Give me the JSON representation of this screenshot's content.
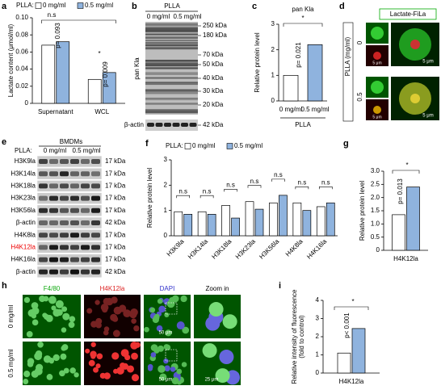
{
  "panel_labels": [
    "a",
    "b",
    "c",
    "d",
    "e",
    "f",
    "g",
    "h",
    "i"
  ],
  "chart_data": [
    {
      "type": "bar",
      "y_label": [
        "Lactate content (μmol/ml)"
      ],
      "legend_title": "PLLA:",
      "categories": [
        "Supernatant",
        "WCL"
      ],
      "series": [
        {
          "name": "0 mg/ml",
          "color": "#ffffff",
          "values": [
            0.068,
            0.028
          ]
        },
        {
          "name": "0.5 mg/ml",
          "color": "#8fb3de",
          "values": [
            0.072,
            0.036
          ]
        }
      ],
      "ylim": [
        0,
        0.1
      ],
      "yticks": [
        0,
        0.02,
        0.04,
        0.06,
        0.08,
        {
          "value": 0.1,
          "label": "0.10"
        }
      ],
      "annotations": [
        "n.s",
        "p= 0.093",
        "*",
        "p= 0.009"
      ]
    },
    {
      "type": "bar",
      "title": "pan Kla",
      "y_label": [
        "Relative protein level"
      ],
      "x_label": "PLLA",
      "categories": [
        "0 mg/ml",
        "0.5 mg/ml"
      ],
      "series": [
        {
          "colors": [
            "#ffffff",
            "#8fb3de"
          ],
          "values": [
            1.0,
            2.2
          ]
        }
      ],
      "ylim": [
        0,
        3
      ],
      "yticks": [
        0,
        1,
        2,
        3
      ],
      "annotations": [
        "*",
        "p= 0.021"
      ]
    },
    {
      "type": "bar",
      "y_label": [
        "Relative protein level"
      ],
      "legend_title": "PLLA:",
      "categories": [
        "H3K9la",
        "H3K14la",
        "H3K18la",
        "H3K23la",
        "H3K56la",
        "H4K8la",
        "H4K16la"
      ],
      "series": [
        {
          "name": "0 mg/ml",
          "color": "#ffffff",
          "values": [
            0.95,
            0.95,
            1.2,
            1.35,
            1.3,
            1.3,
            1.15
          ]
        },
        {
          "name": "0.5 mg/ml",
          "color": "#8fb3de",
          "values": [
            0.85,
            0.85,
            0.7,
            1.05,
            1.6,
            1.0,
            1.3
          ]
        }
      ],
      "ylim": [
        0,
        3
      ],
      "yticks": [
        0,
        1,
        2,
        3
      ],
      "annotations": [
        "n.s",
        "n.s",
        "n.s",
        "n.s",
        "n.s",
        "n.s",
        "n.s"
      ]
    },
    {
      "type": "bar",
      "y_label": [
        "Relative protein level"
      ],
      "categories": [
        "H4K12la"
      ],
      "series": [
        {
          "color": "#ffffff",
          "values": [
            1.35
          ]
        },
        {
          "color": "#8fb3de",
          "values": [
            2.4
          ]
        }
      ],
      "ylim": [
        0,
        3
      ],
      "yticks": [
        0,
        0.5,
        {
          "value": 1,
          "label": "1.0"
        },
        1.5,
        {
          "value": 2,
          "label": "2.0"
        },
        2.5,
        {
          "value": 3,
          "label": "3.0"
        }
      ],
      "annotations": [
        "*",
        "p= 0.013"
      ]
    },
    {
      "type": "bar",
      "y_label": [
        "Relative intensity of fluorescence",
        "(fold to control)"
      ],
      "categories": [
        "H4K12la"
      ],
      "series": [
        {
          "color": "#ffffff",
          "values": [
            1.1
          ]
        },
        {
          "color": "#8fb3de",
          "values": [
            2.45
          ]
        }
      ],
      "ylim": [
        0,
        4
      ],
      "yticks": [
        0,
        1,
        2,
        3,
        4
      ],
      "annotations": [
        "*",
        "p< 0.001"
      ]
    }
  ],
  "images": {
    "b": {
      "title": "PLLA",
      "lanes": [
        "0 mg/ml",
        "0.5 mg/ml"
      ],
      "rows": [
        "pan Kla",
        "β-actin"
      ],
      "markers": [
        "250 kDa",
        "180 kDa",
        "70 kDa",
        "50 kDa",
        "40 kDa",
        "30 kDa",
        "20 kDa",
        "42 kDa"
      ]
    },
    "d": {
      "title": "Lactate-FiLa",
      "axis": "PLLA (mg/ml)",
      "rows": [
        "0",
        "0.5"
      ],
      "scales": [
        "5 μm",
        "5 μm",
        "5 μm",
        "5 μm"
      ]
    },
    "e": {
      "title": "BMDMs",
      "legend": "PLLA:",
      "lanes": [
        "0 mg/ml",
        "0.5 mg/ml"
      ],
      "rows": [
        [
          "H3K9la",
          "17 kDa"
        ],
        [
          "H3K14la",
          "17 kDa"
        ],
        [
          "H3K18la",
          "17 kDa"
        ],
        [
          "H3K23la",
          "17 kDa"
        ],
        [
          "H3K56la",
          "17 kDa"
        ],
        [
          "β-actin",
          "42 kDa"
        ],
        [
          "H4K8la",
          "17 kDa"
        ],
        [
          "H4K12la",
          "17 kDa"
        ],
        [
          "H4K16la",
          "17 kDa"
        ],
        [
          "β-actin",
          "42 kDa"
        ]
      ]
    },
    "h": {
      "columns": [
        "F4/80",
        "H4K12la",
        "DAPI",
        "Zoom in"
      ],
      "rows": [
        "0 mg/ml",
        "0.5 mg/ml"
      ],
      "scales": [
        "50 μm",
        "50 μm",
        "25 μm"
      ]
    }
  }
}
